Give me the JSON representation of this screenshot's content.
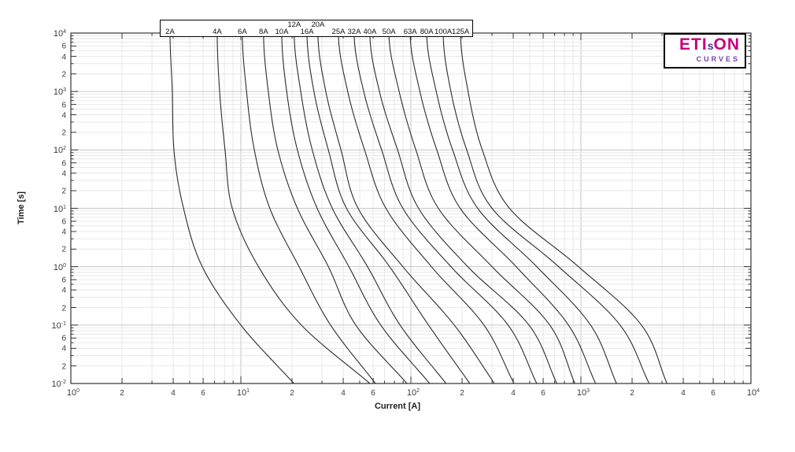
{
  "logo": {
    "part1": "ETI",
    "part2": "s",
    "part3": "ON",
    "subtitle": "CURVES"
  },
  "colors": {
    "curve": "#2b2b2b",
    "grid_minor": "#e8e8e8",
    "grid_major": "#c6c6c6",
    "axis": "#333333",
    "tick_label": "#3a3a3a",
    "curve_label_text": "#111111",
    "logo_magenta": "#c4007e",
    "logo_purple": "#4a2d85",
    "logo_subtitle": "#7442a8"
  },
  "chart_data": {
    "type": "line",
    "title": "",
    "xlabel": "Current [A]",
    "ylabel": "Time [s]",
    "x_scale": "log",
    "y_scale": "log",
    "xlim": [
      1,
      10000
    ],
    "ylim": [
      0.01,
      10000
    ],
    "grid": true,
    "curve_labels_position": "top",
    "x_decade_exponents": [
      0,
      1,
      2,
      3,
      4
    ],
    "y_decade_exponents": [
      4,
      3,
      2,
      1,
      0,
      -1,
      -2
    ],
    "x_labeled_minors": [
      2,
      4,
      6
    ],
    "y_labeled_minors": [
      6,
      4,
      2
    ],
    "minor_multiples": [
      2,
      3,
      4,
      5,
      6,
      7,
      8,
      9
    ],
    "times_s": [
      10000,
      1000,
      100,
      10,
      1,
      0.1,
      0.01
    ],
    "series": [
      {
        "label": "2A",
        "label_row": "lower",
        "amps": [
          3.83,
          3.95,
          4.04,
          4.6,
          5.93,
          10.0,
          20.5
        ]
      },
      {
        "label": "4A",
        "label_row": "lower",
        "amps": [
          7.26,
          7.5,
          8.07,
          8.9,
          12.7,
          22.7,
          57.4
        ]
      },
      {
        "label": "6A",
        "label_row": "lower",
        "amps": [
          10.2,
          10.8,
          12.0,
          14.8,
          22.0,
          33.7,
          61.9
        ]
      },
      {
        "label": "8A",
        "label_row": "lower",
        "amps": [
          13.6,
          14.5,
          16.5,
          21.5,
          32.7,
          47.4,
          94.8
        ]
      },
      {
        "label": "10A",
        "label_row": "lower",
        "amps": [
          17.4,
          18.6,
          21.5,
          28.1,
          43.2,
          66.5,
          129
        ]
      },
      {
        "label": "12A",
        "label_row": "upper",
        "amps": [
          20.6,
          22.5,
          26.3,
          34.5,
          55.6,
          86.4,
          161
        ]
      },
      {
        "label": "16A",
        "label_row": "lower",
        "amps": [
          24.5,
          26.9,
          32.7,
          41.8,
          75.0,
          127,
          222
        ]
      },
      {
        "label": "20A",
        "label_row": "upper",
        "amps": [
          28.4,
          31.6,
          38.8,
          48.9,
          89.7,
          180,
          310
        ]
      },
      {
        "label": "25A",
        "label_row": "lower",
        "amps": [
          37.5,
          42.5,
          53.4,
          71.3,
          132,
          269,
          404
        ]
      },
      {
        "label": "32A",
        "label_row": "lower",
        "amps": [
          46.4,
          52.8,
          67.3,
          89.7,
          172,
          373,
          550
        ]
      },
      {
        "label": "40A",
        "label_row": "lower",
        "amps": [
          57.4,
          65.3,
          83.5,
          111,
          216,
          495,
          722
        ]
      },
      {
        "label": "50A",
        "label_row": "lower",
        "amps": [
          74.3,
          85.3,
          107,
          145,
          300,
          656,
          921
        ]
      },
      {
        "label": "63A",
        "label_row": "lower",
        "amps": [
          99.1,
          113,
          142,
          195,
          416,
          845,
          1220
        ]
      },
      {
        "label": "80A",
        "label_row": "lower",
        "amps": [
          124,
          141,
          176,
          247,
          550,
          1140,
          1620
        ]
      },
      {
        "label": "100A",
        "label_row": "lower",
        "amps": [
          155,
          172,
          213,
          300,
          740,
          1700,
          2520
        ]
      },
      {
        "label": "125A",
        "label_row": "lower",
        "amps": [
          196,
          217,
          263,
          380,
          968,
          2270,
          3210
        ]
      }
    ]
  }
}
